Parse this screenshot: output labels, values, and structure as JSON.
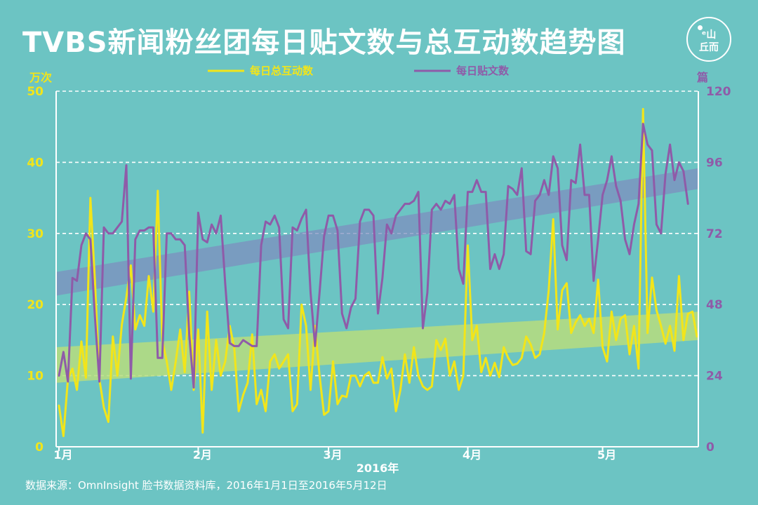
{
  "title": "TVBS新闻粉丝团每日贴文数与总互动数趋势图",
  "logo": {
    "top": "ᵉ山",
    "bottom": "丘而"
  },
  "source": "数据来源：OmnInsight 脸书数据资料库，2016年1月1日至2016年5月12日",
  "colors": {
    "background": "#6cc4c3",
    "interactions": "#f2e51a",
    "posts": "#8f5ba8",
    "interactions_band": "#b7dd7e",
    "posts_band": "#7e8fbf",
    "grid": "#ffffff"
  },
  "chart_data": {
    "type": "line",
    "title": "TVBS新闻粉丝团每日贴文数与总互动数趋势图",
    "xlabel": "2016年",
    "x_ticks": [
      "1月",
      "2月",
      "3月",
      "4月",
      "5月"
    ],
    "x_range": [
      "2016-01-01",
      "2016-05-12"
    ],
    "left_axis": {
      "unit": "万次",
      "ylim": [
        0,
        50
      ],
      "ticks": [
        0,
        10,
        20,
        30,
        40,
        50
      ]
    },
    "right_axis": {
      "unit": "篇",
      "ylim": [
        0,
        120
      ],
      "ticks": [
        0,
        24,
        48,
        72,
        96,
        120
      ]
    },
    "grid": "horizontal",
    "legend_position": "top",
    "series": [
      {
        "name": "每日总互动数",
        "axis": "left",
        "trend_band": {
          "start": [
            9,
            14
          ],
          "end": [
            15,
            19
          ]
        },
        "values": [
          5.8,
          1.5,
          9.6,
          11,
          8,
          14.8,
          9.7,
          35,
          23.5,
          9.5,
          5.5,
          3.5,
          15.5,
          10,
          17.2,
          21,
          25.5,
          16.5,
          18.5,
          17,
          24,
          19,
          36,
          15,
          12,
          8,
          12,
          16.5,
          10.5,
          21.8,
          8,
          16.5,
          2,
          19,
          8,
          15,
          10,
          12,
          17,
          14,
          5,
          7.3,
          9,
          15.8,
          6,
          8,
          5,
          12,
          13,
          11,
          12,
          13,
          5,
          6,
          20,
          17,
          8,
          17,
          10,
          4.5,
          5,
          12,
          6,
          7.2,
          7,
          10,
          10,
          8.5,
          10,
          10.5,
          9,
          9,
          12.6,
          9.6,
          11,
          5,
          8,
          13,
          9,
          14,
          10,
          8.5,
          8,
          8.5,
          15,
          13.6,
          15.2,
          10,
          12,
          8,
          10,
          28.3,
          15,
          17,
          10.5,
          12.5,
          10,
          11.8,
          9.8,
          14,
          12.5,
          11.5,
          11.7,
          12.5,
          15.5,
          14.4,
          12.5,
          13,
          16,
          22,
          32,
          16.5,
          22,
          23,
          16,
          17.5,
          18.5,
          17,
          18,
          16,
          23.5,
          14,
          12,
          19,
          15,
          18,
          18.5,
          13,
          17,
          11,
          47.5,
          16,
          23.8,
          19.2,
          17,
          14.5,
          17,
          13.5,
          24,
          15,
          18.7,
          19,
          15.5
        ]
      },
      {
        "name": "每日贴文数",
        "axis": "right",
        "trend_band": {
          "start": [
            51,
            59
          ],
          "end": [
            87,
            94
          ]
        },
        "values": [
          24,
          32,
          22,
          57,
          56,
          68,
          72,
          70,
          44,
          22,
          74,
          72,
          72,
          74,
          76,
          95,
          23,
          70,
          73,
          73,
          74,
          74,
          30,
          30,
          72,
          72,
          70,
          70,
          68,
          38,
          20,
          79,
          70,
          69,
          75,
          72,
          78,
          55,
          35,
          34,
          34,
          36,
          35,
          34,
          34,
          68,
          76,
          75,
          78,
          74,
          43,
          40,
          74,
          73,
          77,
          80,
          52,
          34,
          52,
          71,
          78,
          78,
          73,
          45,
          40,
          47,
          50,
          76,
          80,
          80,
          78,
          45,
          57,
          75,
          72,
          78,
          80,
          82,
          82,
          83,
          86,
          40,
          52,
          80,
          82,
          80,
          83,
          82,
          85,
          60,
          55,
          86,
          86,
          90,
          86,
          86,
          60,
          65,
          60,
          65,
          88,
          87,
          85,
          94,
          66,
          65,
          83,
          85,
          90,
          85,
          98,
          94,
          68,
          63,
          90,
          89,
          102,
          85,
          85,
          56,
          70,
          85,
          90,
          98,
          88,
          83,
          70,
          65,
          75,
          82,
          109,
          102,
          100,
          75,
          72,
          92,
          102,
          90,
          96,
          93,
          82
        ]
      }
    ]
  }
}
